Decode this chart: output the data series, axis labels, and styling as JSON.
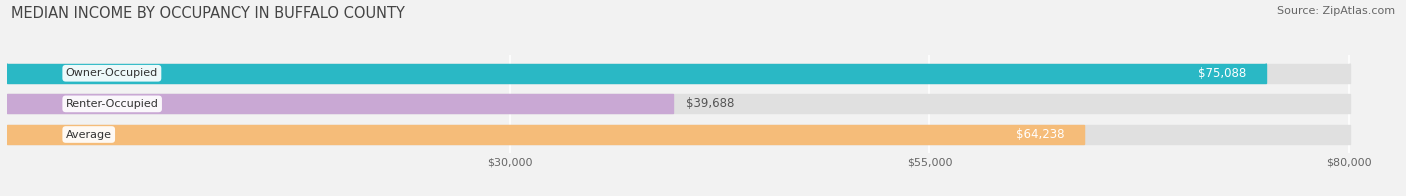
{
  "title": "MEDIAN INCOME BY OCCUPANCY IN BUFFALO COUNTY",
  "source": "Source: ZipAtlas.com",
  "categories": [
    "Owner-Occupied",
    "Renter-Occupied",
    "Average"
  ],
  "values": [
    75088,
    39688,
    64238
  ],
  "bar_colors": [
    "#2ab8c5",
    "#c9a8d4",
    "#f5bc79"
  ],
  "bar_labels": [
    "$75,088",
    "$39,688",
    "$64,238"
  ],
  "label_inside": [
    true,
    false,
    true
  ],
  "x_ticks": [
    30000,
    55000,
    80000
  ],
  "x_tick_labels": [
    "$30,000",
    "$55,000",
    "$80,000"
  ],
  "xlim_max": 83000,
  "bar_height": 0.62,
  "background_color": "#f2f2f2",
  "bar_bg_color": "#e0e0e0",
  "title_fontsize": 10.5,
  "source_fontsize": 8,
  "label_fontsize": 8.5,
  "category_fontsize": 8,
  "tick_fontsize": 8
}
